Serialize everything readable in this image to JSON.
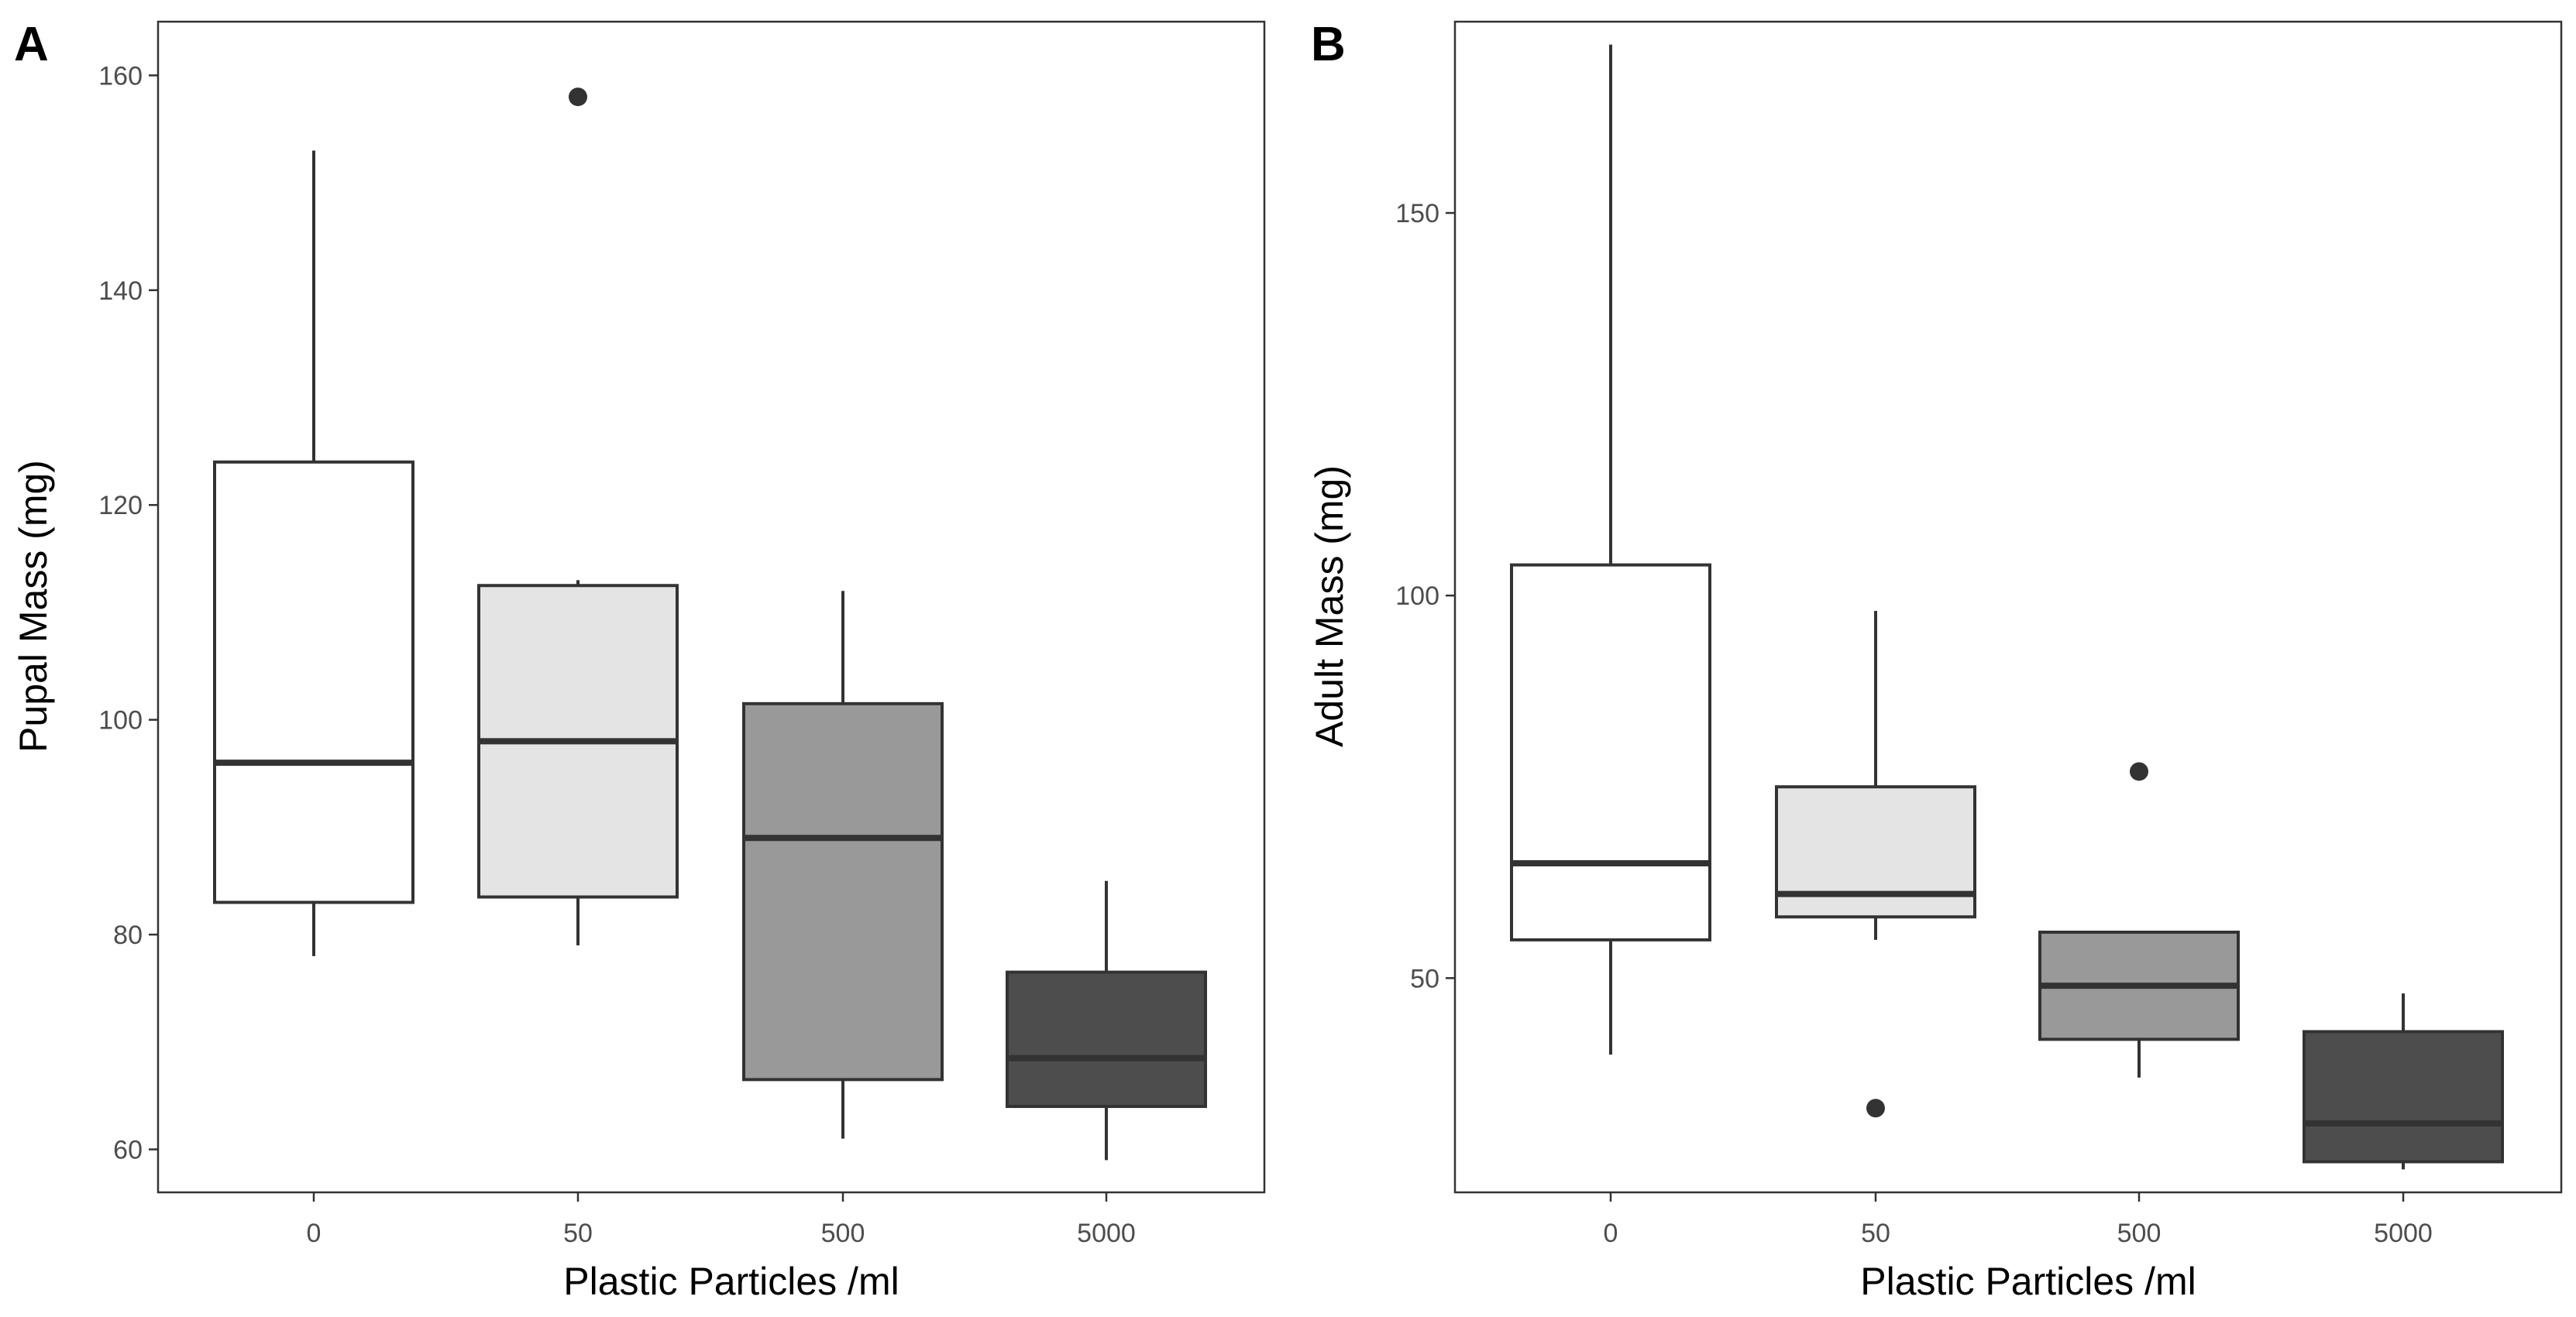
{
  "chart_data": [
    {
      "type": "boxplot",
      "panel_label": "A",
      "xlabel": "Plastic Particles /ml",
      "ylabel": "Pupal Mass (mg)",
      "categories": [
        "0",
        "50",
        "500",
        "5000"
      ],
      "ylim": [
        56,
        165
      ],
      "yticks": [
        60,
        80,
        100,
        120,
        140,
        160
      ],
      "ytick_labels": [
        "60",
        "80",
        "100",
        "120",
        "140",
        "160"
      ],
      "grid": false,
      "boxes": [
        {
          "category": "0",
          "whisker_low": 78,
          "q1": 83,
          "median": 96,
          "q3": 124,
          "whisker_high": 153,
          "outliers": [],
          "fill": "#ffffff"
        },
        {
          "category": "50",
          "whisker_low": 79,
          "q1": 83.5,
          "median": 98,
          "q3": 112.5,
          "whisker_high": 113,
          "outliers": [
            158
          ],
          "fill": "#e4e4e4"
        },
        {
          "category": "500",
          "whisker_low": 61,
          "q1": 66.5,
          "median": 89,
          "q3": 101.5,
          "whisker_high": 112,
          "outliers": [],
          "fill": "#999999"
        },
        {
          "category": "5000",
          "whisker_low": 59,
          "q1": 64,
          "median": 68.5,
          "q3": 76.5,
          "whisker_high": 85,
          "outliers": [],
          "fill": "#4d4d4d"
        }
      ]
    },
    {
      "type": "boxplot",
      "panel_label": "B",
      "xlabel": "Plastic Particles /ml",
      "ylabel": "Adult Mass (mg)",
      "categories": [
        "0",
        "50",
        "500",
        "5000"
      ],
      "ylim": [
        22,
        175
      ],
      "yticks": [
        50,
        100,
        150
      ],
      "ytick_labels": [
        "50",
        "100",
        "150"
      ],
      "grid": false,
      "boxes": [
        {
          "category": "0",
          "whisker_low": 40,
          "q1": 55,
          "median": 65,
          "q3": 104,
          "whisker_high": 172,
          "outliers": [],
          "fill": "#ffffff"
        },
        {
          "category": "50",
          "whisker_low": 55,
          "q1": 58,
          "median": 61,
          "q3": 75,
          "whisker_high": 98,
          "outliers": [
            33
          ],
          "fill": "#e4e4e4"
        },
        {
          "category": "500",
          "whisker_low": 37,
          "q1": 42,
          "median": 49,
          "q3": 56,
          "whisker_high": 56,
          "outliers": [
            77
          ],
          "fill": "#999999"
        },
        {
          "category": "5000",
          "whisker_low": 25,
          "q1": 26,
          "median": 31,
          "q3": 43,
          "whisker_high": 48,
          "outliers": [],
          "fill": "#4d4d4d"
        }
      ]
    }
  ]
}
